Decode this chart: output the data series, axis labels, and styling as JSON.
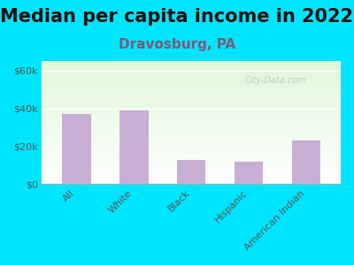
{
  "title": "Median per capita income in 2022",
  "subtitle": "Dravosburg, PA",
  "categories": [
    "All",
    "White",
    "Black",
    "Hispanic",
    "American Indian"
  ],
  "values": [
    37000,
    39000,
    13000,
    12000,
    23000
  ],
  "bar_color": "#c9aed6",
  "title_fontsize": 15,
  "subtitle_color": "#7a5a7a",
  "subtitle_fontsize": 11,
  "ylabel_ticks": [
    "$0",
    "$20k",
    "$40k",
    "$60k"
  ],
  "ytick_values": [
    0,
    20000,
    40000,
    60000
  ],
  "ylim": [
    0,
    65000
  ],
  "background_outer": "#00e5ff",
  "watermark": "City-Data.com"
}
